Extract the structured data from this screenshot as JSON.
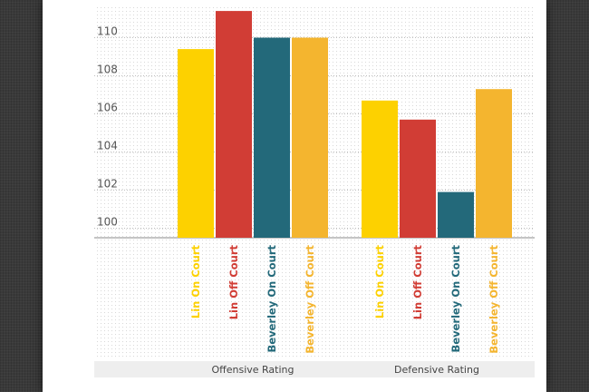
{
  "chart_data": {
    "type": "bar",
    "groups": [
      "Offensive Rating",
      "Defensive Rating"
    ],
    "series": [
      {
        "name": "Lin On Court",
        "color": "#fdd100",
        "values": [
          109.4,
          106.7
        ]
      },
      {
        "name": "Lin Off Court",
        "color": "#d13d35",
        "values": [
          111.4,
          105.7
        ]
      },
      {
        "name": "Beverley On Court",
        "color": "#23697a",
        "values": [
          110.0,
          101.9
        ]
      },
      {
        "name": "Beverley Off Court",
        "color": "#f4b52f",
        "values": [
          110.0,
          107.3
        ]
      }
    ],
    "y_ticks": [
      100,
      102,
      104,
      106,
      108,
      110
    ],
    "ylim": [
      99.5,
      112
    ],
    "title": "",
    "xlabel": "",
    "ylabel": "",
    "grid": true,
    "legend": "none"
  }
}
